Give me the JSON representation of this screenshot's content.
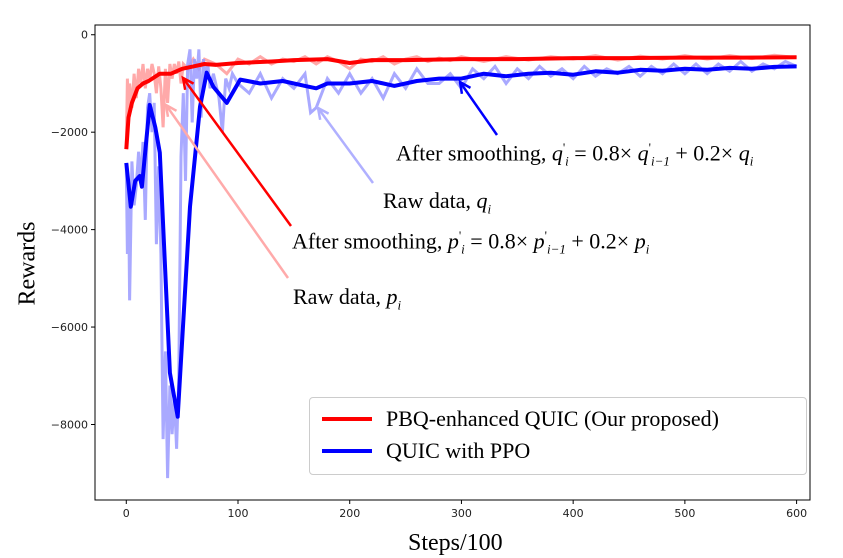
{
  "chart_data": {
    "type": "line",
    "xlabel": "Steps/100",
    "ylabel": "Rewards",
    "xlim": [
      -28,
      612
    ],
    "ylim": [
      -9550,
      200
    ],
    "xticks": [
      0,
      100,
      200,
      300,
      400,
      500,
      600
    ],
    "yticks": [
      0,
      -2000,
      -4000,
      -6000,
      -8000
    ],
    "ytick_labels": [
      "0",
      "−2000",
      "−4000",
      "−6000",
      "−8000"
    ],
    "grid": false,
    "legend_position": "bottom-right",
    "series": [
      {
        "name": "PBQ-enhanced QUIC (Our proposed)",
        "color": "#ff0000",
        "raw_color": "#ff9a9a",
        "raw": [
          [
            0,
            -2300
          ],
          [
            1,
            -900
          ],
          [
            2,
            -1700
          ],
          [
            3,
            -1000
          ],
          [
            5,
            -1500
          ],
          [
            7,
            -800
          ],
          [
            9,
            -1300
          ],
          [
            11,
            -700
          ],
          [
            13,
            -1000
          ],
          [
            15,
            -600
          ],
          [
            17,
            -1100
          ],
          [
            19,
            -700
          ],
          [
            21,
            -900
          ],
          [
            23,
            -600
          ],
          [
            25,
            -800
          ],
          [
            27,
            -1200
          ],
          [
            29,
            -650
          ],
          [
            31,
            -1100
          ],
          [
            33,
            -1900
          ],
          [
            35,
            -700
          ],
          [
            37,
            -1400
          ],
          [
            39,
            -600
          ],
          [
            41,
            -900
          ],
          [
            43,
            -600
          ],
          [
            45,
            -800
          ],
          [
            47,
            -550
          ],
          [
            49,
            -1000
          ],
          [
            51,
            -600
          ],
          [
            55,
            -700
          ],
          [
            60,
            -500
          ],
          [
            65,
            -700
          ],
          [
            70,
            -500
          ],
          [
            80,
            -600
          ],
          [
            90,
            -800
          ],
          [
            100,
            -500
          ],
          [
            110,
            -600
          ],
          [
            120,
            -450
          ],
          [
            130,
            -600
          ],
          [
            140,
            -500
          ],
          [
            150,
            -550
          ],
          [
            160,
            -450
          ],
          [
            170,
            -600
          ],
          [
            180,
            -450
          ],
          [
            190,
            -550
          ],
          [
            200,
            -700
          ],
          [
            210,
            -500
          ],
          [
            220,
            -550
          ],
          [
            230,
            -450
          ],
          [
            240,
            -600
          ],
          [
            250,
            -500
          ],
          [
            260,
            -450
          ],
          [
            270,
            -550
          ],
          [
            280,
            -480
          ],
          [
            290,
            -530
          ],
          [
            300,
            -450
          ],
          [
            320,
            -550
          ],
          [
            340,
            -450
          ],
          [
            360,
            -520
          ],
          [
            380,
            -450
          ],
          [
            400,
            -500
          ],
          [
            420,
            -430
          ],
          [
            440,
            -520
          ],
          [
            460,
            -440
          ],
          [
            480,
            -500
          ],
          [
            500,
            -430
          ],
          [
            520,
            -500
          ],
          [
            540,
            -430
          ],
          [
            560,
            -490
          ],
          [
            580,
            -420
          ],
          [
            600,
            -470
          ]
        ],
        "smoothed": [
          [
            0,
            -2350
          ],
          [
            2,
            -1700
          ],
          [
            5,
            -1400
          ],
          [
            10,
            -1100
          ],
          [
            15,
            -1000
          ],
          [
            20,
            -950
          ],
          [
            30,
            -800
          ],
          [
            40,
            -800
          ],
          [
            50,
            -700
          ],
          [
            60,
            -650
          ],
          [
            70,
            -600
          ],
          [
            80,
            -620
          ],
          [
            100,
            -580
          ],
          [
            130,
            -550
          ],
          [
            150,
            -520
          ],
          [
            180,
            -500
          ],
          [
            200,
            -580
          ],
          [
            220,
            -520
          ],
          [
            250,
            -520
          ],
          [
            300,
            -500
          ],
          [
            350,
            -500
          ],
          [
            400,
            -480
          ],
          [
            450,
            -480
          ],
          [
            500,
            -470
          ],
          [
            550,
            -470
          ],
          [
            600,
            -460
          ]
        ]
      },
      {
        "name": "QUIC with PPO",
        "color": "#0000ff",
        "raw_color": "#9a9aff",
        "raw": [
          [
            0,
            -2700
          ],
          [
            1,
            -4500
          ],
          [
            2,
            -3000
          ],
          [
            3,
            -5450
          ],
          [
            5,
            -2600
          ],
          [
            7,
            -3500
          ],
          [
            9,
            -3100
          ],
          [
            11,
            -2400
          ],
          [
            13,
            -3000
          ],
          [
            15,
            -2200
          ],
          [
            17,
            -3800
          ],
          [
            19,
            -1500
          ],
          [
            21,
            -1200
          ],
          [
            23,
            -2000
          ],
          [
            25,
            -1400
          ],
          [
            27,
            -4300
          ],
          [
            29,
            -2700
          ],
          [
            31,
            -4500
          ],
          [
            33,
            -8300
          ],
          [
            35,
            -6500
          ],
          [
            37,
            -9100
          ],
          [
            39,
            -7200
          ],
          [
            41,
            -8200
          ],
          [
            43,
            -7400
          ],
          [
            45,
            -8500
          ],
          [
            47,
            -7000
          ],
          [
            49,
            -2500
          ],
          [
            51,
            -1200
          ],
          [
            53,
            -3000
          ],
          [
            55,
            -600
          ],
          [
            57,
            -300
          ],
          [
            59,
            -1800
          ],
          [
            61,
            -500
          ],
          [
            63,
            -900
          ],
          [
            65,
            -300
          ],
          [
            67,
            -1700
          ],
          [
            69,
            -500
          ],
          [
            71,
            -900
          ],
          [
            73,
            -600
          ],
          [
            75,
            -1100
          ],
          [
            78,
            -800
          ],
          [
            80,
            -1000
          ],
          [
            83,
            -1300
          ],
          [
            86,
            -2000
          ],
          [
            89,
            -900
          ],
          [
            92,
            -1100
          ],
          [
            95,
            -800
          ],
          [
            100,
            -1000
          ],
          [
            110,
            -1200
          ],
          [
            120,
            -800
          ],
          [
            130,
            -1300
          ],
          [
            140,
            -900
          ],
          [
            150,
            -1100
          ],
          [
            160,
            -800
          ],
          [
            165,
            -1600
          ],
          [
            170,
            -1500
          ],
          [
            180,
            -900
          ],
          [
            190,
            -1200
          ],
          [
            200,
            -800
          ],
          [
            210,
            -1200
          ],
          [
            220,
            -900
          ],
          [
            230,
            -1300
          ],
          [
            240,
            -800
          ],
          [
            250,
            -1100
          ],
          [
            260,
            -700
          ],
          [
            270,
            -1000
          ],
          [
            280,
            -1000
          ],
          [
            290,
            -800
          ],
          [
            300,
            -1100
          ],
          [
            310,
            -700
          ],
          [
            320,
            -900
          ],
          [
            330,
            -650
          ],
          [
            340,
            -1000
          ],
          [
            350,
            -700
          ],
          [
            360,
            -900
          ],
          [
            370,
            -650
          ],
          [
            380,
            -850
          ],
          [
            390,
            -700
          ],
          [
            400,
            -900
          ],
          [
            410,
            -650
          ],
          [
            420,
            -850
          ],
          [
            430,
            -700
          ],
          [
            440,
            -800
          ],
          [
            450,
            -650
          ],
          [
            460,
            -850
          ],
          [
            470,
            -650
          ],
          [
            480,
            -800
          ],
          [
            490,
            -600
          ],
          [
            500,
            -800
          ],
          [
            510,
            -600
          ],
          [
            520,
            -800
          ],
          [
            530,
            -600
          ],
          [
            540,
            -750
          ],
          [
            550,
            -550
          ],
          [
            560,
            -750
          ],
          [
            570,
            -600
          ],
          [
            580,
            -700
          ],
          [
            590,
            -550
          ],
          [
            600,
            -650
          ]
        ],
        "smoothed": [
          [
            0,
            -2630
          ],
          [
            4,
            -3530
          ],
          [
            8,
            -3000
          ],
          [
            12,
            -2900
          ],
          [
            14,
            -3120
          ],
          [
            21,
            -1440
          ],
          [
            26,
            -1900
          ],
          [
            30,
            -2420
          ],
          [
            39,
            -6940
          ],
          [
            46,
            -7840
          ],
          [
            57,
            -3530
          ],
          [
            66,
            -1480
          ],
          [
            72,
            -780
          ],
          [
            78,
            -1070
          ],
          [
            90,
            -1400
          ],
          [
            102,
            -920
          ],
          [
            120,
            -1000
          ],
          [
            140,
            -950
          ],
          [
            160,
            -1050
          ],
          [
            170,
            -1100
          ],
          [
            180,
            -1000
          ],
          [
            200,
            -1000
          ],
          [
            220,
            -950
          ],
          [
            240,
            -1050
          ],
          [
            260,
            -950
          ],
          [
            280,
            -900
          ],
          [
            300,
            -900
          ],
          [
            320,
            -800
          ],
          [
            340,
            -850
          ],
          [
            360,
            -800
          ],
          [
            380,
            -780
          ],
          [
            400,
            -820
          ],
          [
            420,
            -750
          ],
          [
            440,
            -780
          ],
          [
            460,
            -720
          ],
          [
            480,
            -740
          ],
          [
            500,
            -700
          ],
          [
            520,
            -720
          ],
          [
            540,
            -680
          ],
          [
            560,
            -700
          ],
          [
            580,
            -660
          ],
          [
            600,
            -650
          ]
        ]
      }
    ],
    "annotations": {
      "q_smooth": {
        "lead": "After smoothing,",
        "var": "q",
        "eq": "= 0.8×",
        "c2": "+ 0.2×",
        "sub_i": "i",
        "sub_im1": "i−1",
        "prime": "'"
      },
      "q_raw": {
        "lead": "Raw data,",
        "var": "q",
        "sub_i": "i"
      },
      "p_smooth": {
        "lead": "After smoothing,",
        "var": "p",
        "eq": "= 0.8×",
        "c2": "+ 0.2×",
        "sub_i": "i",
        "sub_im1": "i−1",
        "prime": "'"
      },
      "p_raw": {
        "lead": "Raw data,",
        "var": "p",
        "sub_i": "i"
      }
    }
  }
}
